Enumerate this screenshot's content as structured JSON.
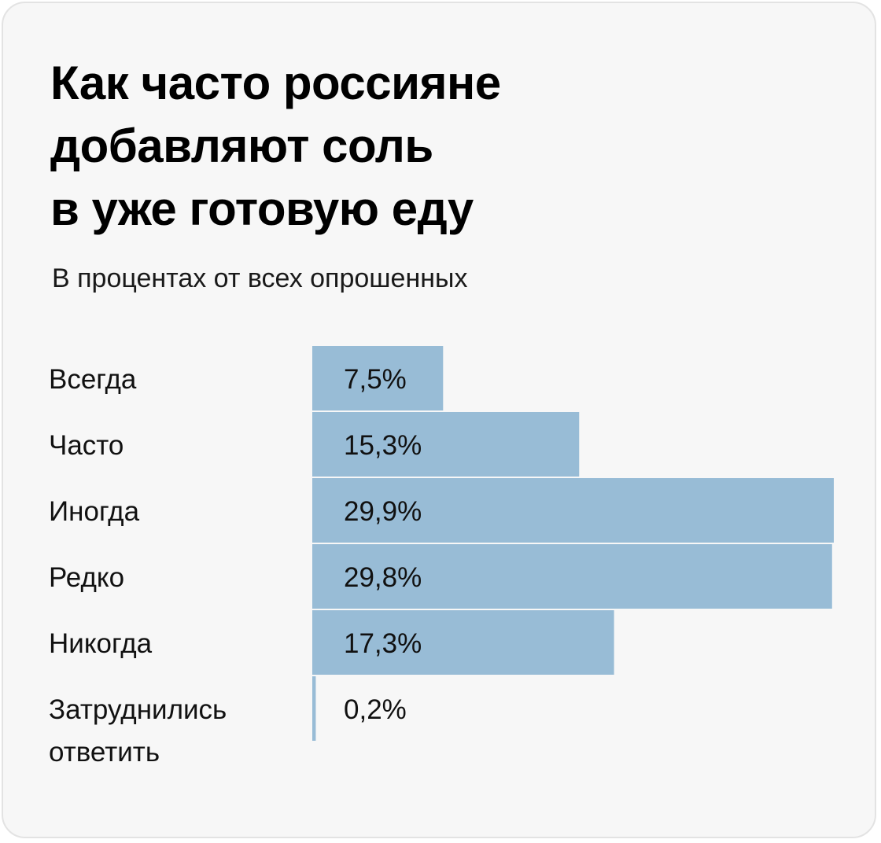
{
  "colors": {
    "background": "#f7f7f7",
    "border": "#e3e3e3",
    "bar": "#98bcd6",
    "text": "#111111"
  },
  "chart_data": {
    "type": "bar",
    "orientation": "horizontal",
    "title": [
      "Как часто россияне",
      "добавляют соль",
      "в уже готовую еду"
    ],
    "subtitle": "В процентах от всех опрошенных",
    "categories": [
      [
        "Всегда"
      ],
      [
        "Часто"
      ],
      [
        "Иногда"
      ],
      [
        "Редко"
      ],
      [
        "Никогда"
      ],
      [
        "Затруднились",
        "ответить"
      ]
    ],
    "values": [
      7.5,
      15.3,
      29.9,
      29.8,
      17.3,
      0.2
    ],
    "value_labels": [
      "7,5%",
      "15,3%",
      "29,9%",
      "29,8%",
      "17,3%",
      "0,2%"
    ],
    "unit": "%",
    "xlim": [
      0,
      29.9
    ],
    "grid": false,
    "legend": "none"
  }
}
